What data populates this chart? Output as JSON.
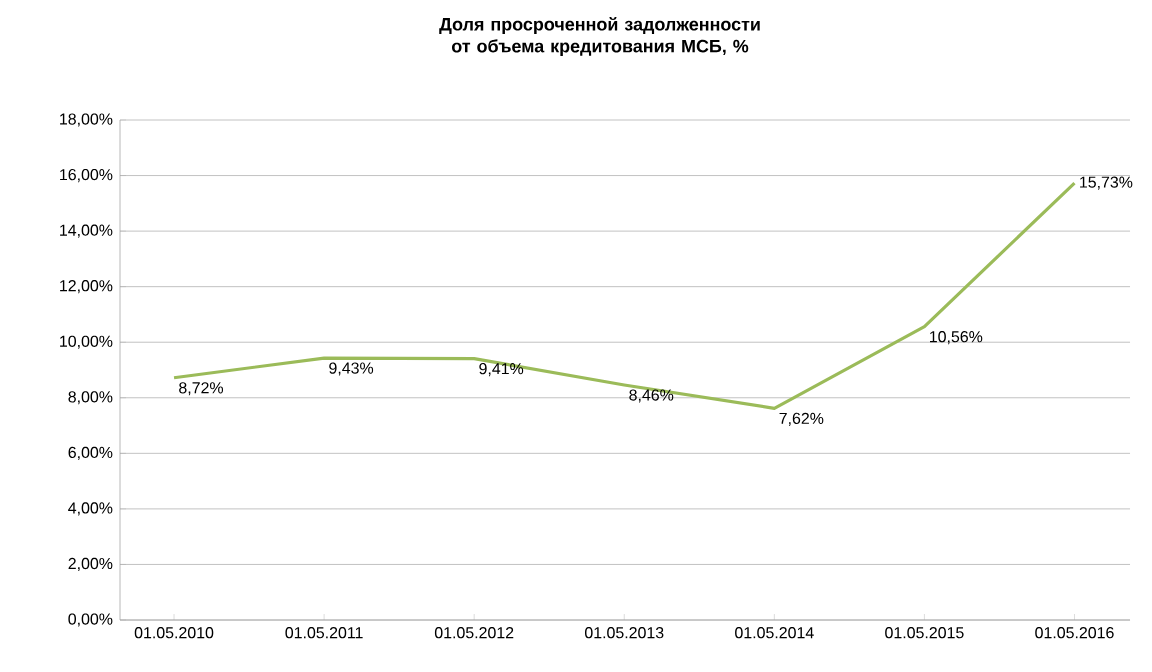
{
  "chart_data": {
    "type": "line",
    "title": "Доля просроченной задолженности от объема кредитования МСБ, %",
    "categories": [
      "01.05.2010",
      "01.05.2011",
      "01.05.2012",
      "01.05.2013",
      "01.05.2014",
      "01.05.2015",
      "01.05.2016"
    ],
    "values": [
      8.72,
      9.43,
      9.41,
      8.46,
      7.62,
      10.56,
      15.73
    ],
    "value_labels": [
      "8,72%",
      "9,43%",
      "9,41%",
      "8,46%",
      "7,62%",
      "10,56%",
      "15,73%"
    ],
    "color": "#9bbb59",
    "ylim": [
      0,
      18
    ],
    "yticks": [
      {
        "value": 0,
        "label": "0,00%"
      },
      {
        "value": 2,
        "label": "2,00%"
      },
      {
        "value": 4,
        "label": "4,00%"
      },
      {
        "value": 6,
        "label": "6,00%"
      },
      {
        "value": 8,
        "label": "8,00%"
      },
      {
        "value": 10,
        "label": "10,00%"
      },
      {
        "value": 12,
        "label": "12,00%"
      },
      {
        "value": 14,
        "label": "14,00%"
      },
      {
        "value": 16,
        "label": "16,00%"
      },
      {
        "value": 18,
        "label": "18,00%"
      }
    ],
    "grid": "y",
    "marker": "none",
    "line_style": "solid"
  }
}
